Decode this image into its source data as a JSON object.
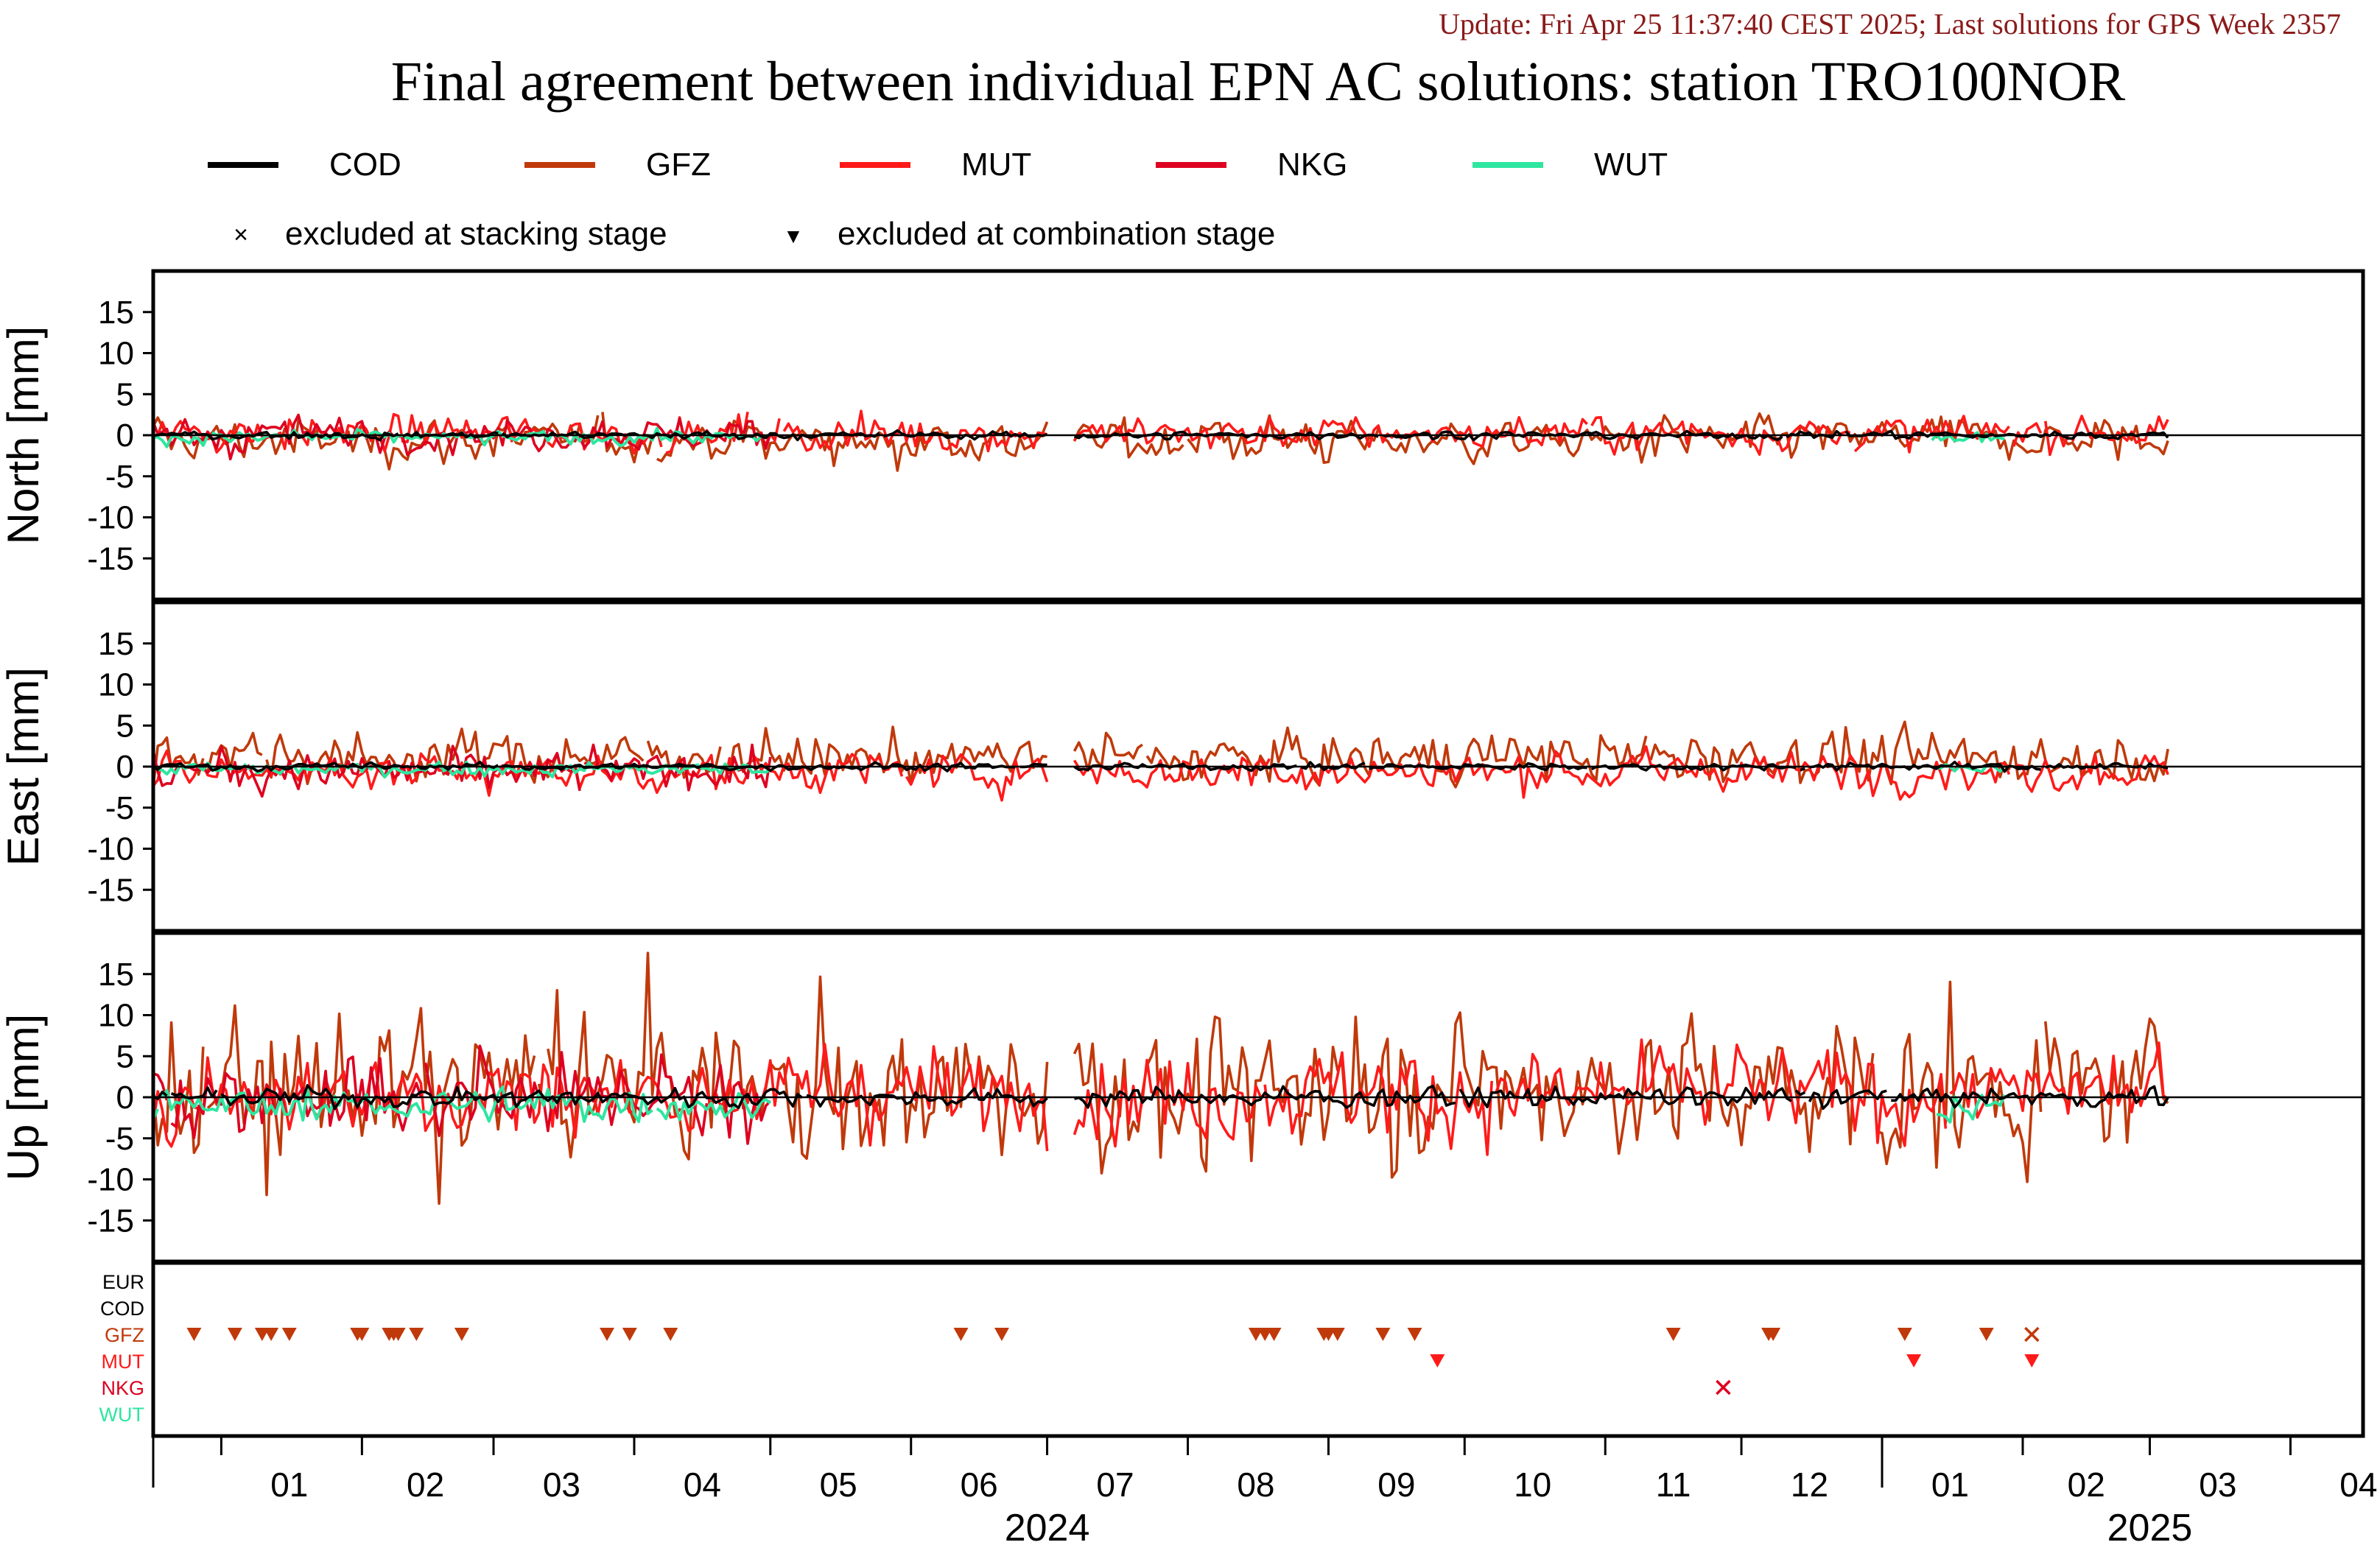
{
  "update_text": "Update: Fri Apr 25 11:37:40 CEST 2025; Last solutions for GPS Week 2357",
  "title": "Final agreement between individual EPN AC solutions: station TRO100NOR",
  "legend": {
    "series": [
      {
        "name": "COD",
        "color": "#000000"
      },
      {
        "name": "GFZ",
        "color": "#c0390b"
      },
      {
        "name": "MUT",
        "color": "#ff1a1a"
      },
      {
        "name": "NKG",
        "color": "#dd0020"
      },
      {
        "name": "WUT",
        "color": "#2ee6a0"
      }
    ],
    "markers": [
      {
        "symbol": "×",
        "label": "excluded at stacking stage"
      },
      {
        "symbol": "▼",
        "label": "excluded at combination stage"
      }
    ]
  },
  "chart_data": {
    "type": "line",
    "x_range": [
      "2023-12-17",
      "2025-04-17"
    ],
    "panels": [
      {
        "ylabel": "North [mm]",
        "ylim": [
          -20,
          20
        ],
        "yticks": [
          15,
          10,
          5,
          0,
          -5,
          -10,
          -15
        ],
        "gfz_amp": 2.0,
        "mut_amp": 1.6,
        "gfz_bias": -0.6,
        "mut_bias": 0.2
      },
      {
        "ylabel": "East [mm]",
        "ylim": [
          -20,
          20
        ],
        "yticks": [
          15,
          10,
          5,
          0,
          -5,
          -10,
          -15
        ],
        "gfz_amp": 2.2,
        "mut_amp": 1.8,
        "gfz_bias": 1.2,
        "mut_bias": -0.6
      },
      {
        "ylabel": "Up [mm]",
        "ylim": [
          -20,
          20
        ],
        "yticks": [
          15,
          10,
          5,
          0,
          -5,
          -10,
          -15
        ],
        "gfz_amp": 6.0,
        "mut_amp": 4.0,
        "gfz_bias": 1.0,
        "mut_bias": 0.5
      }
    ],
    "series": [
      {
        "name": "COD",
        "color": "#000000",
        "amplitude_mm": 0.5,
        "active": [
          [
            "2023-12-17",
            "2024-07-01"
          ],
          [
            "2024-07-07",
            "2025-03-05"
          ]
        ]
      },
      {
        "name": "GFZ",
        "color": "#c0390b",
        "amplitude_mm": "large",
        "active": [
          [
            "2023-12-17",
            "2024-07-01"
          ],
          [
            "2024-07-07",
            "2025-03-05"
          ]
        ]
      },
      {
        "name": "MUT",
        "color": "#ff1a1a",
        "amplitude_mm": "medium",
        "active": [
          [
            "2023-12-17",
            "2024-07-01"
          ],
          [
            "2024-07-07",
            "2025-03-05"
          ]
        ]
      },
      {
        "name": "NKG",
        "color": "#dd0020",
        "amplitude_mm": "medium",
        "active": [
          [
            "2023-12-17",
            "2024-05-01"
          ]
        ]
      },
      {
        "name": "WUT",
        "color": "#2ee6a0",
        "amplitude_mm": 1.0,
        "active": [
          [
            "2023-12-17",
            "2024-05-01"
          ],
          [
            "2025-01-12",
            "2025-01-28"
          ]
        ]
      }
    ],
    "exclusions": {
      "rows": [
        "EUR",
        "COD",
        "GFZ",
        "MUT",
        "NKG",
        "WUT"
      ],
      "row_colors": [
        "#000000",
        "#000000",
        "#c0390b",
        "#ff1a1a",
        "#dd0020",
        "#2ee6a0"
      ],
      "events": [
        {
          "row": "GFZ",
          "type": "combination",
          "dates": [
            "2023-12-26",
            "2024-01-04",
            "2024-01-10",
            "2024-01-12",
            "2024-01-16",
            "2024-01-31",
            "2024-02-01",
            "2024-02-07",
            "2024-02-08",
            "2024-02-09",
            "2024-02-13",
            "2024-02-23",
            "2024-03-26",
            "2024-03-31",
            "2024-04-09",
            "2024-06-12",
            "2024-06-21",
            "2024-08-16",
            "2024-08-18",
            "2024-08-20",
            "2024-08-31",
            "2024-09-01",
            "2024-09-03",
            "2024-09-13",
            "2024-09-20",
            "2024-11-16",
            "2024-12-07",
            "2024-12-08",
            "2025-01-06",
            "2025-01-24"
          ]
        },
        {
          "row": "GFZ",
          "type": "stacking",
          "dates": [
            "2025-02-03"
          ]
        },
        {
          "row": "MUT",
          "type": "combination",
          "dates": [
            "2024-09-25",
            "2025-01-08",
            "2025-02-03"
          ]
        },
        {
          "row": "NKG",
          "type": "stacking",
          "dates": [
            "2024-11-27"
          ]
        }
      ]
    },
    "x_axis": {
      "months": [
        {
          "label": "01",
          "mid": "2024-01-16"
        },
        {
          "label": "02",
          "mid": "2024-02-15"
        },
        {
          "label": "03",
          "mid": "2024-03-16"
        },
        {
          "label": "04",
          "mid": "2024-04-16"
        },
        {
          "label": "05",
          "mid": "2024-05-16"
        },
        {
          "label": "06",
          "mid": "2024-06-16"
        },
        {
          "label": "07",
          "mid": "2024-07-16"
        },
        {
          "label": "08",
          "mid": "2024-08-16"
        },
        {
          "label": "09",
          "mid": "2024-09-16"
        },
        {
          "label": "10",
          "mid": "2024-10-16"
        },
        {
          "label": "11",
          "mid": "2024-11-16"
        },
        {
          "label": "12",
          "mid": "2024-12-16"
        },
        {
          "label": "01",
          "mid": "2025-01-16"
        },
        {
          "label": "02",
          "mid": "2025-02-15"
        },
        {
          "label": "03",
          "mid": "2025-03-16"
        },
        {
          "label": "04",
          "mid": "2025-04-16"
        }
      ],
      "month_boundaries": [
        "2024-01-01",
        "2024-02-01",
        "2024-03-01",
        "2024-04-01",
        "2024-05-01",
        "2024-06-01",
        "2024-07-01",
        "2024-08-01",
        "2024-09-01",
        "2024-10-01",
        "2024-11-01",
        "2024-12-01",
        "2025-01-01",
        "2025-02-01",
        "2025-03-01",
        "2025-04-01"
      ],
      "years": [
        {
          "label": "2024",
          "mid": "2024-07-01"
        },
        {
          "label": "2025",
          "mid": "2025-03-01"
        }
      ],
      "year_boundaries": [
        "2025-01-01"
      ]
    }
  }
}
